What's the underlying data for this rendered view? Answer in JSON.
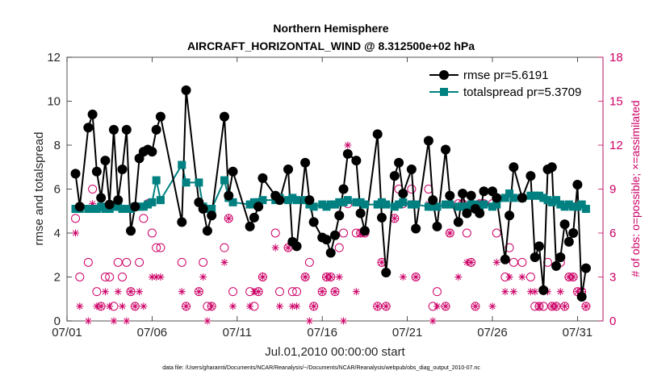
{
  "chart_data": {
    "type": "line",
    "title": "Northern Hemisphere",
    "subtitle": "AIRCRAFT_HORIZONTAL_WIND @ 8.312500e+02 hPa",
    "xlabel": "Jul.01,2010 00:00:00 start",
    "ylabel": "rmse and totalspread",
    "ylabel_right": "# of obs: o=possible; ×=assimilated",
    "xlim": [
      1,
      32.5
    ],
    "ylim": [
      0,
      12
    ],
    "ylim_right": [
      0,
      18
    ],
    "xticks": [
      1,
      6,
      11,
      16,
      21,
      26,
      31
    ],
    "xtick_labels": [
      "07/01",
      "07/06",
      "07/11",
      "07/16",
      "07/21",
      "07/26",
      "07/31"
    ],
    "yticks": [
      0,
      2,
      4,
      6,
      8,
      10,
      12
    ],
    "ytick_labels": [
      "0",
      "2",
      "4",
      "6",
      "8",
      "10",
      "12"
    ],
    "yticks_right": [
      0,
      3,
      6,
      9,
      12,
      15,
      18
    ],
    "ytick_labels_right": [
      "0",
      "3",
      "6",
      "9",
      "12",
      "15",
      "18"
    ],
    "grid": false,
    "legend_position": "top-right",
    "legend": [
      "rmse pr=5.6191",
      "totalspread pr=5.3709"
    ],
    "series": [
      {
        "name": "rmse pr=5.6191",
        "color": "#000000",
        "marker": "circle",
        "x": [
          1.5,
          1.75,
          2.25,
          2.5,
          2.75,
          3.0,
          3.25,
          3.5,
          3.75,
          4.0,
          4.25,
          4.5,
          4.75,
          5.0,
          5.25,
          5.5,
          5.75,
          6.0,
          6.25,
          6.5,
          7.75,
          8.0,
          8.75,
          9.0,
          9.25,
          9.5,
          10.25,
          10.5,
          10.75,
          11.75,
          12.0,
          12.25,
          12.5,
          13.25,
          13.5,
          14.0,
          14.25,
          14.5,
          15.0,
          15.25,
          15.5,
          16.0,
          16.25,
          16.5,
          16.75,
          17.0,
          17.25,
          17.5,
          18.0,
          18.25,
          18.5,
          19.25,
          19.5,
          19.75,
          20.25,
          20.5,
          20.75,
          21.25,
          21.5,
          22.25,
          22.5,
          22.75,
          23.25,
          23.5,
          24.0,
          24.25,
          24.5,
          24.75,
          25.0,
          25.25,
          25.5,
          26.0,
          26.25,
          26.75,
          27.0,
          27.25,
          27.75,
          28.25,
          28.5,
          28.75,
          29.0,
          29.25,
          29.5,
          29.75,
          30.0,
          30.25,
          30.5,
          30.75,
          31.0,
          31.25,
          31.5
        ],
        "values": [
          6.7,
          5.2,
          8.8,
          9.4,
          6.8,
          5.6,
          7.3,
          5.3,
          8.7,
          5.5,
          6.9,
          8.7,
          4.1,
          5.2,
          7.4,
          7.7,
          7.8,
          7.7,
          8.7,
          9.3,
          4.5,
          10.5,
          5.4,
          5.1,
          4.1,
          4.8,
          9.3,
          5.7,
          6.8,
          4.3,
          4.7,
          5.2,
          6.5,
          5.7,
          5.5,
          6.9,
          3.6,
          3.4,
          7.2,
          5.5,
          4.5,
          3.8,
          3.7,
          3.1,
          3.9,
          4.8,
          6.0,
          7.6,
          7.3,
          4.9,
          4.1,
          8.5,
          4.7,
          2.2,
          6.6,
          7.2,
          5.8,
          6.9,
          4.2,
          8.2,
          5.5,
          4.3,
          7.8,
          5.7,
          4.5,
          5.8,
          4.9,
          5.7,
          5.1,
          4.9,
          5.9,
          5.9,
          5.6,
          2.8,
          4.8,
          7.0,
          5.6,
          6.6,
          2.9,
          3.4,
          1.4,
          6.9,
          7.0,
          2.5,
          2.9,
          4.4,
          3.6,
          4.0,
          6.2,
          1.1,
          2.4
        ]
      },
      {
        "name": "totalspread pr=5.3709",
        "color": "#008080",
        "marker": "square",
        "x": [
          1.5,
          1.75,
          2.25,
          2.5,
          2.75,
          3.0,
          3.25,
          3.5,
          3.75,
          4.0,
          4.25,
          4.5,
          4.75,
          5.0,
          5.25,
          5.5,
          5.75,
          6.0,
          6.25,
          6.5,
          7.75,
          8.0,
          8.75,
          9.0,
          9.25,
          9.5,
          10.25,
          10.5,
          10.75,
          11.75,
          12.0,
          12.25,
          12.5,
          13.25,
          13.5,
          14.0,
          14.25,
          14.5,
          15.0,
          15.25,
          15.5,
          16.0,
          16.25,
          16.5,
          16.75,
          17.0,
          17.25,
          17.5,
          18.0,
          18.25,
          18.5,
          19.25,
          19.5,
          19.75,
          20.25,
          20.5,
          20.75,
          21.25,
          21.5,
          22.25,
          22.5,
          22.75,
          23.25,
          23.5,
          24.0,
          24.25,
          24.5,
          24.75,
          25.0,
          25.25,
          25.5,
          26.0,
          26.25,
          26.75,
          27.0,
          27.25,
          27.75,
          28.25,
          28.5,
          28.75,
          29.0,
          29.25,
          29.5,
          29.75,
          30.0,
          30.25,
          30.5,
          30.75,
          31.0,
          31.25,
          31.5
        ],
        "values": [
          5.1,
          5.1,
          5.1,
          5.1,
          5.1,
          5.2,
          5.1,
          5.1,
          5.2,
          5.2,
          5.1,
          5.1,
          5.1,
          5.2,
          5.2,
          5.2,
          5.3,
          5.4,
          6.4,
          5.5,
          7.1,
          6.3,
          6.3,
          5.2,
          5.1,
          5.1,
          6.4,
          5.6,
          5.4,
          5.3,
          5.4,
          5.4,
          5.5,
          5.5,
          5.6,
          5.5,
          5.6,
          5.5,
          5.5,
          5.3,
          5.2,
          5.3,
          5.2,
          5.3,
          5.3,
          5.4,
          5.4,
          5.5,
          5.4,
          5.4,
          5.3,
          5.3,
          5.4,
          5.3,
          5.2,
          5.3,
          5.4,
          5.3,
          5.3,
          5.2,
          5.2,
          5.2,
          5.3,
          5.3,
          5.2,
          5.2,
          5.2,
          5.3,
          5.3,
          5.2,
          5.3,
          5.2,
          5.3,
          5.6,
          5.8,
          5.6,
          5.6,
          5.7,
          5.7,
          5.7,
          5.6,
          5.5,
          5.4,
          5.5,
          5.3,
          5.2,
          5.3,
          5.2,
          5.2,
          5.3,
          5.1
        ]
      },
      {
        "name": "possible obs",
        "color": "#cc0066",
        "marker": "circle-open",
        "axis": "right",
        "x": [
          1.5,
          1.75,
          2.25,
          2.5,
          2.75,
          3.0,
          3.25,
          3.5,
          3.75,
          4.0,
          4.25,
          4.5,
          4.75,
          5.0,
          5.25,
          5.5,
          5.75,
          6.0,
          6.25,
          6.5,
          7.75,
          8.0,
          8.75,
          9.0,
          9.25,
          9.5,
          10.25,
          10.5,
          10.75,
          11.75,
          12.0,
          12.25,
          12.5,
          13.25,
          13.5,
          14.0,
          14.25,
          14.5,
          15.0,
          15.25,
          15.5,
          16.0,
          16.25,
          16.5,
          16.75,
          17.0,
          17.25,
          17.5,
          18.0,
          18.25,
          18.5,
          19.25,
          19.5,
          19.75,
          20.25,
          20.5,
          20.75,
          21.25,
          21.5,
          22.25,
          22.5,
          22.75,
          23.25,
          23.5,
          24.0,
          24.25,
          24.5,
          24.75,
          25.0,
          25.25,
          25.5,
          26.0,
          26.25,
          26.75,
          27.0,
          27.25,
          27.75,
          28.25,
          28.5,
          28.75,
          29.0,
          29.25,
          29.5,
          29.75,
          30.0,
          30.25,
          30.5,
          30.75,
          31.0,
          31.25,
          31.5
        ],
        "values": [
          7,
          3,
          4,
          9,
          2,
          1,
          3,
          3,
          1,
          4,
          3,
          4,
          2,
          1,
          4,
          7,
          8,
          6,
          5,
          5,
          4,
          1,
          2,
          4,
          1,
          1,
          5,
          7,
          2,
          2,
          1,
          2,
          3,
          6,
          2,
          5,
          2,
          2,
          3,
          4,
          1,
          2,
          3,
          3,
          2,
          5,
          6,
          8,
          6,
          6,
          6,
          1,
          4,
          1,
          7,
          9,
          8,
          9,
          3,
          9,
          1,
          2,
          1,
          6,
          8,
          8,
          6,
          4,
          1,
          8,
          8,
          8,
          6,
          3,
          5,
          4,
          4,
          3,
          1,
          1,
          1,
          4,
          1,
          1,
          4,
          1,
          3,
          3,
          2,
          2,
          1
        ]
      },
      {
        "name": "assimilated obs",
        "color": "#cc0066",
        "marker": "asterisk",
        "axis": "right",
        "x": [
          1.5,
          1.75,
          2.25,
          2.5,
          2.75,
          3.0,
          3.25,
          3.5,
          3.75,
          4.0,
          4.25,
          4.5,
          4.75,
          5.0,
          5.25,
          5.5,
          5.75,
          6.0,
          6.25,
          6.5,
          7.75,
          8.0,
          8.75,
          9.0,
          9.25,
          9.5,
          10.25,
          10.5,
          10.75,
          11.75,
          12.0,
          12.25,
          12.5,
          13.25,
          13.5,
          14.0,
          14.25,
          14.5,
          15.0,
          15.25,
          15.5,
          16.0,
          16.25,
          16.5,
          16.75,
          17.0,
          17.25,
          17.5,
          18.0,
          18.25,
          18.5,
          19.25,
          19.5,
          19.75,
          20.25,
          20.5,
          20.75,
          21.25,
          21.5,
          22.25,
          22.5,
          22.75,
          23.25,
          23.5,
          24.0,
          24.25,
          24.5,
          24.75,
          25.0,
          25.25,
          25.5,
          26.0,
          26.25,
          26.75,
          27.0,
          27.25,
          27.75,
          28.25,
          28.5,
          28.75,
          29.0,
          29.25,
          29.5,
          29.75,
          30.0,
          30.25,
          30.5,
          30.75,
          31.0,
          31.25,
          31.5
        ],
        "values": [
          6,
          1,
          0,
          8,
          1,
          1,
          2,
          1,
          0,
          2,
          1,
          0,
          2,
          1,
          2,
          1,
          8,
          3,
          3,
          3,
          2,
          1,
          2,
          3,
          0,
          1,
          4,
          7,
          1,
          1,
          2,
          2,
          3,
          5,
          1,
          5,
          1,
          1,
          3,
          0,
          1,
          2,
          3,
          3,
          2,
          3,
          0,
          12,
          2,
          6,
          6,
          1,
          4,
          1,
          7,
          8,
          3,
          8,
          3,
          8,
          0,
          1,
          1,
          6,
          3,
          8,
          4,
          4,
          1,
          8,
          8,
          1,
          4,
          2,
          3,
          2,
          3,
          2,
          2,
          1,
          2,
          2,
          1,
          1,
          2,
          1,
          3,
          3,
          2,
          2,
          1
        ]
      }
    ]
  },
  "footnote": "data file: /Users/gharamti/Documents/NCAR/Reanalysis/~/Documents/NCAR/Reanalysis/webpub/obs_diag_output_2010-07.nc"
}
